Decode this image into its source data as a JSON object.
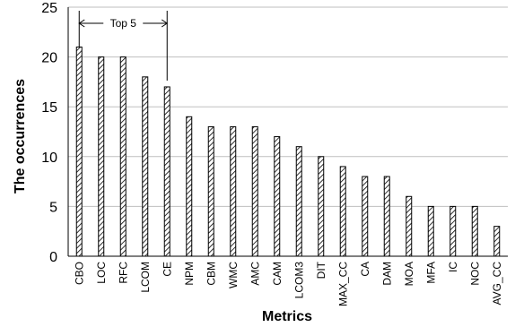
{
  "chart_data": {
    "type": "bar",
    "title": "",
    "xlabel": "Metrics",
    "ylabel": "The occurrences",
    "ylim": [
      0,
      25
    ],
    "yticks": [
      0,
      5,
      10,
      15,
      20,
      25
    ],
    "grid": "horizontal",
    "legend": "none",
    "bar_fill": "diagonal hatch",
    "colors": {
      "bar_stroke": "#000000",
      "grid": "#bfbfbf",
      "axis": "#000000"
    },
    "categories": [
      "CBO",
      "LOC",
      "RFC",
      "LCOM",
      "CE",
      "NPM",
      "CBM",
      "WMC",
      "AMC",
      "CAM",
      "LCOM3",
      "DIT",
      "MAX_CC",
      "CA",
      "DAM",
      "MOA",
      "MFA",
      "IC",
      "NOC",
      "AVG_CC"
    ],
    "values": [
      21,
      20,
      20,
      18,
      17,
      14,
      13,
      13,
      13,
      12,
      11,
      10,
      9,
      8,
      8,
      6,
      5,
      5,
      5,
      3
    ],
    "annotations": [
      {
        "text": "Top 5",
        "from_category": "CBO",
        "to_category": "CE"
      }
    ]
  }
}
